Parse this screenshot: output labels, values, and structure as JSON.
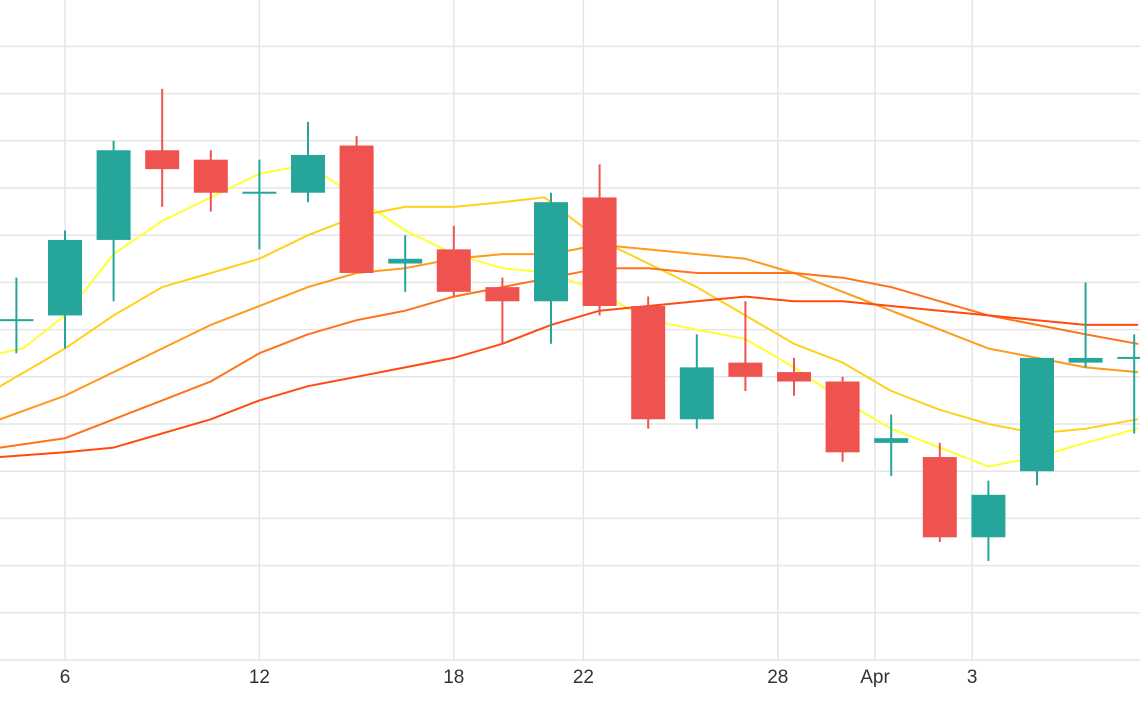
{
  "chart_data": {
    "type": "candlestick",
    "title": "",
    "xlabel": "",
    "ylabel": "",
    "grid": true,
    "x_tick_labels": [
      {
        "day": 6,
        "label": "6"
      },
      {
        "day": 12,
        "label": "12"
      },
      {
        "day": 18,
        "label": "18"
      },
      {
        "day": 22,
        "label": "22"
      },
      {
        "day": 28,
        "label": "28"
      },
      {
        "day": 31,
        "label": "Apr"
      },
      {
        "day": 34,
        "label": "3"
      }
    ],
    "xlim": [
      4,
      39.1
    ],
    "ylim": [
      -2.3,
      12.0
    ],
    "candles": [
      {
        "day": 4.5,
        "open": 4.9,
        "high": 5.8,
        "low": 4.2,
        "close": 4.9
      },
      {
        "day": 6,
        "open": 5.0,
        "high": 6.8,
        "low": 4.3,
        "close": 6.6
      },
      {
        "day": 7.5,
        "open": 6.6,
        "high": 8.7,
        "low": 5.3,
        "close": 8.5
      },
      {
        "day": 9,
        "open": 8.5,
        "high": 9.8,
        "low": 7.3,
        "close": 8.1
      },
      {
        "day": 10.5,
        "open": 8.3,
        "high": 8.5,
        "low": 7.2,
        "close": 7.6
      },
      {
        "day": 12,
        "open": 7.6,
        "high": 8.3,
        "low": 6.4,
        "close": 7.6
      },
      {
        "day": 13.5,
        "open": 7.6,
        "high": 9.1,
        "low": 7.4,
        "close": 8.4
      },
      {
        "day": 15,
        "open": 8.6,
        "high": 8.8,
        "low": 5.9,
        "close": 5.9
      },
      {
        "day": 16.5,
        "open": 6.1,
        "high": 6.7,
        "low": 5.5,
        "close": 6.2
      },
      {
        "day": 18,
        "open": 6.4,
        "high": 6.9,
        "low": 5.4,
        "close": 5.5
      },
      {
        "day": 19.5,
        "open": 5.6,
        "high": 5.8,
        "low": 4.4,
        "close": 5.3
      },
      {
        "day": 21,
        "open": 5.3,
        "high": 7.6,
        "low": 4.4,
        "close": 7.4
      },
      {
        "day": 22.5,
        "open": 7.5,
        "high": 8.2,
        "low": 5.0,
        "close": 5.2
      },
      {
        "day": 24,
        "open": 5.2,
        "high": 5.4,
        "low": 2.6,
        "close": 2.8
      },
      {
        "day": 25.5,
        "open": 2.8,
        "high": 4.6,
        "low": 2.6,
        "close": 3.9
      },
      {
        "day": 27,
        "open": 4.0,
        "high": 5.3,
        "low": 3.4,
        "close": 3.7
      },
      {
        "day": 28.5,
        "open": 3.8,
        "high": 4.1,
        "low": 3.3,
        "close": 3.6
      },
      {
        "day": 30,
        "open": 3.6,
        "high": 3.7,
        "low": 1.9,
        "close": 2.1
      },
      {
        "day": 31.5,
        "open": 2.3,
        "high": 2.9,
        "low": 1.6,
        "close": 2.4
      },
      {
        "day": 33,
        "open": 2.0,
        "high": 2.3,
        "low": 0.2,
        "close": 0.3
      },
      {
        "day": 34.5,
        "open": 0.3,
        "high": 1.5,
        "low": -0.2,
        "close": 1.2
      },
      {
        "day": 36,
        "open": 1.7,
        "high": 4.0,
        "low": 1.4,
        "close": 4.1
      },
      {
        "day": 37.5,
        "open": 4.0,
        "high": 5.7,
        "low": 3.9,
        "close": 4.1
      },
      {
        "day": 39,
        "open": 4.1,
        "high": 4.6,
        "low": 2.5,
        "close": 4.1
      }
    ],
    "moving_averages": [
      {
        "color": "#ffff33",
        "values": [
          [
            4.0,
            4.2
          ],
          [
            4.7,
            4.3
          ],
          [
            6.0,
            5.0
          ],
          [
            7.5,
            6.3
          ],
          [
            9.0,
            7.0
          ],
          [
            10.5,
            7.5
          ],
          [
            12.0,
            8.0
          ],
          [
            13.5,
            8.2
          ],
          [
            15.0,
            7.5
          ],
          [
            16.5,
            6.8
          ],
          [
            18.0,
            6.3
          ],
          [
            19.5,
            6.0
          ],
          [
            21.0,
            5.9
          ],
          [
            22.5,
            5.5
          ],
          [
            24.0,
            4.9
          ],
          [
            25.5,
            4.7
          ],
          [
            27.0,
            4.5
          ],
          [
            28.5,
            3.9
          ],
          [
            30.0,
            3.2
          ],
          [
            31.5,
            2.6
          ],
          [
            33.0,
            2.2
          ],
          [
            34.5,
            1.8
          ],
          [
            36.0,
            2.0
          ],
          [
            37.5,
            2.3
          ],
          [
            39.1,
            2.6
          ]
        ]
      },
      {
        "color": "#ffd11a",
        "values": [
          [
            4.0,
            3.5
          ],
          [
            6.0,
            4.3
          ],
          [
            7.5,
            5.0
          ],
          [
            9.0,
            5.6
          ],
          [
            10.5,
            5.9
          ],
          [
            12.0,
            6.2
          ],
          [
            13.5,
            6.7
          ],
          [
            15.0,
            7.1
          ],
          [
            16.5,
            7.3
          ],
          [
            18.0,
            7.3
          ],
          [
            19.5,
            7.4
          ],
          [
            20.8,
            7.5
          ],
          [
            22.5,
            6.6
          ],
          [
            24.0,
            6.1
          ],
          [
            25.5,
            5.6
          ],
          [
            27.0,
            5.0
          ],
          [
            28.5,
            4.4
          ],
          [
            30.0,
            4.0
          ],
          [
            31.5,
            3.4
          ],
          [
            33.0,
            3.0
          ],
          [
            34.5,
            2.7
          ],
          [
            36.0,
            2.5
          ],
          [
            37.5,
            2.6
          ],
          [
            39.1,
            2.8
          ]
        ]
      },
      {
        "color": "#ff9a1a",
        "values": [
          [
            4.0,
            2.8
          ],
          [
            6.0,
            3.3
          ],
          [
            7.5,
            3.8
          ],
          [
            9.0,
            4.3
          ],
          [
            10.5,
            4.8
          ],
          [
            12.0,
            5.2
          ],
          [
            13.5,
            5.6
          ],
          [
            15.0,
            5.9
          ],
          [
            16.5,
            6.0
          ],
          [
            18.0,
            6.2
          ],
          [
            19.5,
            6.3
          ],
          [
            21.0,
            6.3
          ],
          [
            22.5,
            6.5
          ],
          [
            24.0,
            6.4
          ],
          [
            25.5,
            6.3
          ],
          [
            27.0,
            6.2
          ],
          [
            28.5,
            5.9
          ],
          [
            30.0,
            5.5
          ],
          [
            31.5,
            5.1
          ],
          [
            33.0,
            4.7
          ],
          [
            34.5,
            4.3
          ],
          [
            36.0,
            4.1
          ],
          [
            37.5,
            3.9
          ],
          [
            39.1,
            3.8
          ]
        ]
      },
      {
        "color": "#ff7318",
        "values": [
          [
            4.0,
            2.2
          ],
          [
            6.0,
            2.4
          ],
          [
            7.5,
            2.8
          ],
          [
            9.0,
            3.2
          ],
          [
            10.5,
            3.6
          ],
          [
            12.0,
            4.2
          ],
          [
            13.5,
            4.6
          ],
          [
            15.0,
            4.9
          ],
          [
            16.5,
            5.1
          ],
          [
            18.0,
            5.4
          ],
          [
            19.5,
            5.6
          ],
          [
            21.0,
            5.8
          ],
          [
            22.5,
            6.0
          ],
          [
            24.0,
            6.0
          ],
          [
            25.5,
            5.9
          ],
          [
            27.0,
            5.9
          ],
          [
            28.5,
            5.9
          ],
          [
            30.0,
            5.8
          ],
          [
            31.5,
            5.6
          ],
          [
            33.0,
            5.3
          ],
          [
            34.5,
            5.0
          ],
          [
            36.0,
            4.8
          ],
          [
            37.5,
            4.6
          ],
          [
            39.1,
            4.4
          ]
        ]
      },
      {
        "color": "#ff4a10",
        "values": [
          [
            4.0,
            2.0
          ],
          [
            6.0,
            2.1
          ],
          [
            7.5,
            2.2
          ],
          [
            9.0,
            2.5
          ],
          [
            10.5,
            2.8
          ],
          [
            12.0,
            3.2
          ],
          [
            13.5,
            3.5
          ],
          [
            15.0,
            3.7
          ],
          [
            16.5,
            3.9
          ],
          [
            18.0,
            4.1
          ],
          [
            19.5,
            4.4
          ],
          [
            21.0,
            4.8
          ],
          [
            22.5,
            5.1
          ],
          [
            24.0,
            5.2
          ],
          [
            25.5,
            5.3
          ],
          [
            27.0,
            5.4
          ],
          [
            28.5,
            5.3
          ],
          [
            30.0,
            5.3
          ],
          [
            31.5,
            5.2
          ],
          [
            33.0,
            5.1
          ],
          [
            34.5,
            5.0
          ],
          [
            36.0,
            4.9
          ],
          [
            37.5,
            4.8
          ],
          [
            39.1,
            4.8
          ]
        ]
      }
    ],
    "colors": {
      "increasing": "#26a69a",
      "decreasing": "#ef5350",
      "grid": "#e6e6e6",
      "background": "#ffffff",
      "tick_text": "#333333"
    }
  }
}
